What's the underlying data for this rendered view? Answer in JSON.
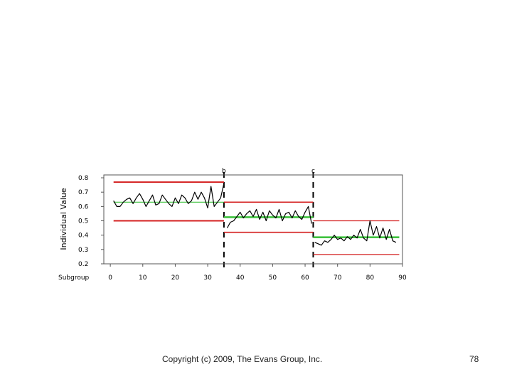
{
  "footer": {
    "copyright": "Copyright (c) 2009, The Evans Group, Inc.",
    "page_number": "78"
  },
  "chart_data": {
    "type": "line",
    "ylabel": "Individual Value",
    "xlabel": "Subgroup",
    "xlim": [
      -2,
      90
    ],
    "ylim": [
      0.2,
      0.82
    ],
    "xticks": [
      0,
      10,
      20,
      30,
      40,
      50,
      60,
      70,
      80,
      90
    ],
    "yticks": [
      0.2,
      0.3,
      0.4,
      0.5,
      0.6,
      0.7,
      0.8
    ],
    "grid": false,
    "stage_labels": [
      {
        "text": "b",
        "x": 35
      },
      {
        "text": "c",
        "x": 62.5
      }
    ],
    "stage_breaks": [
      35,
      62.5
    ],
    "segments": [
      {
        "x_start": 1,
        "x_end": 35,
        "center": 0.63,
        "ucl": 0.77,
        "lcl": 0.5
      },
      {
        "x_start": 35,
        "x_end": 62.5,
        "center": 0.525,
        "ucl": 0.63,
        "lcl": 0.42
      },
      {
        "x_start": 62.5,
        "x_end": 89,
        "center": 0.385,
        "ucl": 0.5,
        "lcl": 0.265
      }
    ],
    "series": [
      {
        "x": [
          1,
          2,
          3,
          4,
          5,
          6,
          7,
          8,
          9,
          10,
          11,
          12,
          13,
          14,
          15,
          16,
          17,
          18,
          19,
          20,
          21,
          22,
          23,
          24,
          25,
          26,
          27,
          28,
          29,
          30,
          31,
          32,
          33,
          34,
          35,
          36,
          37,
          38,
          39,
          40,
          41,
          42,
          43,
          44,
          45,
          46,
          47,
          48,
          49,
          50,
          51,
          52,
          53,
          54,
          55,
          56,
          57,
          58,
          59,
          60,
          61,
          62,
          63,
          64,
          65,
          66,
          67,
          68,
          69,
          70,
          71,
          72,
          73,
          74,
          75,
          76,
          77,
          78,
          79,
          80,
          81,
          82,
          83,
          84,
          85,
          86,
          87,
          88
        ],
        "y": [
          0.64,
          0.6,
          0.6,
          0.63,
          0.65,
          0.66,
          0.62,
          0.66,
          0.69,
          0.65,
          0.6,
          0.64,
          0.68,
          0.61,
          0.62,
          0.68,
          0.65,
          0.62,
          0.6,
          0.66,
          0.62,
          0.68,
          0.66,
          0.62,
          0.64,
          0.7,
          0.65,
          0.7,
          0.66,
          0.59,
          0.74,
          0.6,
          0.63,
          0.66,
          0.76,
          0.45,
          0.49,
          0.5,
          0.53,
          0.56,
          0.52,
          0.55,
          0.57,
          0.53,
          0.58,
          0.51,
          0.56,
          0.5,
          0.57,
          0.54,
          0.52,
          0.58,
          0.5,
          0.55,
          0.56,
          0.52,
          0.57,
          0.53,
          0.51,
          0.56,
          0.6,
          0.48,
          0.35,
          0.34,
          0.33,
          0.36,
          0.35,
          0.37,
          0.4,
          0.37,
          0.38,
          0.36,
          0.39,
          0.37,
          0.4,
          0.38,
          0.44,
          0.38,
          0.36,
          0.5,
          0.4,
          0.46,
          0.38,
          0.45,
          0.37,
          0.44,
          0.36,
          0.35
        ]
      }
    ]
  }
}
